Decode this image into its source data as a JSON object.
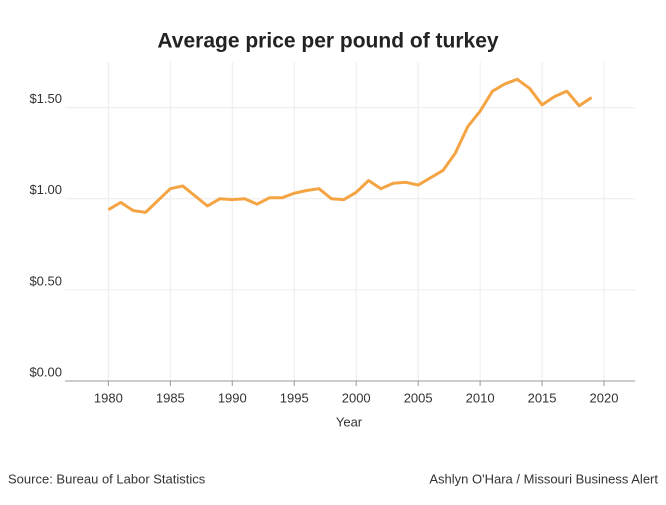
{
  "chart_data": {
    "type": "line",
    "title": "Average price per pound of turkey",
    "x_label": "Year",
    "source": "Source: Bureau of Labor Statistics",
    "credit": "Ashlyn O'Hara / Missouri Business Alert",
    "x": [
      1980,
      1981,
      1982,
      1983,
      1984,
      1985,
      1986,
      1987,
      1988,
      1989,
      1990,
      1991,
      1992,
      1993,
      1994,
      1995,
      1996,
      1997,
      1998,
      1999,
      2000,
      2001,
      2002,
      2003,
      2004,
      2005,
      2006,
      2007,
      2008,
      2009,
      2010,
      2011,
      2012,
      2013,
      2014,
      2015,
      2016,
      2017,
      2018,
      2019
    ],
    "series": [
      {
        "name": "Average price per pound",
        "color": "#f4a443",
        "values": [
          0.94,
          0.98,
          0.935,
          0.925,
          0.99,
          1.055,
          1.07,
          1.015,
          0.96,
          1.0,
          0.995,
          1.0,
          0.97,
          1.005,
          1.005,
          1.03,
          1.045,
          1.055,
          1.0,
          0.995,
          1.035,
          1.1,
          1.055,
          1.085,
          1.09,
          1.075,
          1.115,
          1.155,
          1.25,
          1.395,
          1.48,
          1.59,
          1.63,
          1.655,
          1.605,
          1.515,
          1.56,
          1.59,
          1.51,
          1.555
        ]
      }
    ],
    "xlim": [
      1976.5,
      2022.5
    ],
    "xticks": [
      1980,
      1985,
      1990,
      1995,
      2000,
      2005,
      2010,
      2015,
      2020
    ],
    "ylim": [
      0,
      1.75
    ],
    "yticks": [
      {
        "value": 0,
        "label": "$0.00"
      },
      {
        "value": 0.5,
        "label": "$0.50"
      },
      {
        "value": 1,
        "label": "$1.00"
      },
      {
        "value": 1.5,
        "label": "$1.50"
      }
    ],
    "grid": true
  }
}
